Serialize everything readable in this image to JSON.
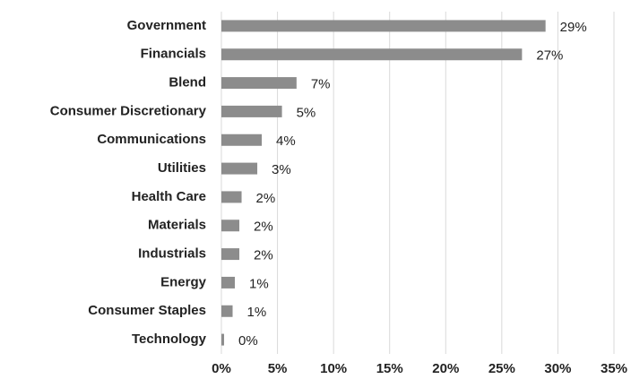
{
  "chart_data": {
    "type": "bar",
    "orientation": "horizontal",
    "categories": [
      "Government",
      "Financials",
      "Blend",
      "Consumer Discretionary",
      "Communications",
      "Utilities",
      "Health Care",
      "Materials",
      "Industrials",
      "Energy",
      "Consumer Staples",
      "Technology"
    ],
    "values": [
      28.9,
      26.8,
      6.7,
      5.4,
      3.6,
      3.2,
      1.8,
      1.6,
      1.6,
      1.2,
      1.0,
      0.24
    ],
    "value_labels": [
      "29%",
      "27%",
      "7%",
      "5%",
      "4%",
      "3%",
      "2%",
      "2%",
      "2%",
      "1%",
      "1%",
      "0%"
    ],
    "color": "#8c8c8c",
    "xlim": [
      0,
      35
    ],
    "xticks": [
      {
        "value": 0,
        "label": "0%"
      },
      {
        "value": 5,
        "label": "5%"
      },
      {
        "value": 10,
        "label": "10%"
      },
      {
        "value": 15,
        "label": "15%"
      },
      {
        "value": 20,
        "label": "20%"
      },
      {
        "value": 25,
        "label": "25%"
      },
      {
        "value": 30,
        "label": "30%"
      },
      {
        "value": 35,
        "label": "35%"
      }
    ],
    "grid": true
  }
}
